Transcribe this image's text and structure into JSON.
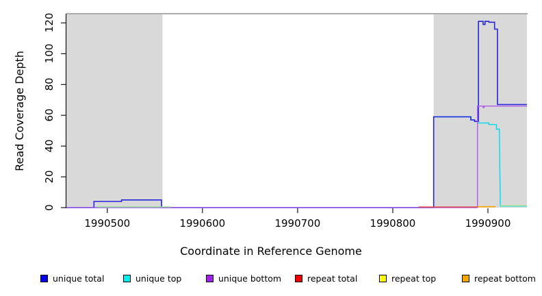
{
  "chart_data": {
    "type": "line",
    "title": "",
    "xlabel": "Coordinate in Reference Genome",
    "ylabel": "Read Coverage Depth",
    "xlim": [
      1990457,
      1990941
    ],
    "ylim": [
      0,
      126
    ],
    "x_ticks": [
      1990500,
      1990600,
      1990700,
      1990800,
      1990900
    ],
    "y_ticks": [
      0,
      20,
      40,
      60,
      80,
      100,
      120
    ],
    "grid": false,
    "legend_position": "bottom",
    "background_color": "#FFFFFF",
    "shaded_regions": [
      {
        "from": 1990457,
        "to": 1990558,
        "color": "#D9D9D9"
      },
      {
        "from": 1990843,
        "to": 1990941,
        "color": "#D9D9D9"
      }
    ],
    "max_line": {
      "value": 126,
      "color": "#909090"
    },
    "series": [
      {
        "name": "unique top",
        "color": "#00EEEE",
        "render_color": "#00DCEE",
        "width": 1.4,
        "segments": [
          [
            [
              1990457,
              0
            ],
            [
              1990843,
              0
            ],
            [
              1990843,
              59
            ],
            [
              1990882,
              59
            ],
            [
              1990882,
              57
            ],
            [
              1990886,
              57
            ],
            [
              1990886,
              56
            ],
            [
              1990889,
              56
            ],
            [
              1990889,
              55
            ],
            [
              1990901,
              55
            ],
            [
              1990901,
              54
            ],
            [
              1990909,
              54
            ],
            [
              1990909,
              51
            ],
            [
              1990912,
              51
            ],
            [
              1990913,
              1
            ],
            [
              1990941,
              1
            ]
          ]
        ]
      },
      {
        "name": "unique total",
        "color": "#0000EE",
        "render_color": "#2424DE",
        "width": 1.6,
        "segments": [
          [
            [
              1990457,
              0
            ],
            [
              1990486,
              0
            ],
            [
              1990486,
              4
            ],
            [
              1990515,
              4
            ],
            [
              1990515,
              5
            ],
            [
              1990557,
              5
            ],
            [
              1990557,
              0
            ],
            [
              1990843,
              0
            ],
            [
              1990843,
              59
            ],
            [
              1990882,
              59
            ],
            [
              1990882,
              57
            ],
            [
              1990886,
              57
            ],
            [
              1990886,
              56
            ],
            [
              1990890,
              56
            ],
            [
              1990890,
              121
            ],
            [
              1990895,
              121
            ],
            [
              1990895,
              119
            ],
            [
              1990897,
              119
            ],
            [
              1990897,
              121
            ],
            [
              1990901,
              121
            ],
            [
              1990901,
              120.5
            ],
            [
              1990907,
              120.5
            ],
            [
              1990907,
              116
            ],
            [
              1990910,
              116
            ],
            [
              1990910,
              67
            ],
            [
              1990941,
              67
            ]
          ]
        ]
      },
      {
        "name": "unique bottom",
        "color": "#A020F0",
        "render_color": "#AE5BE6",
        "width": 1.4,
        "segments": [
          [
            [
              1990457,
              0
            ],
            [
              1990889,
              0
            ],
            [
              1990889,
              66
            ],
            [
              1990895,
              66
            ],
            [
              1990895,
              65
            ],
            [
              1990896,
              65
            ],
            [
              1990896,
              66
            ],
            [
              1990941,
              66
            ]
          ]
        ]
      },
      {
        "name": "repeat total",
        "color": "#EE0000",
        "render_color": "#E04848",
        "width": 1.5,
        "segments": [
          [
            [
              1990827,
              0.4
            ],
            [
              1990889,
              0.4
            ]
          ]
        ]
      },
      {
        "name": "repeat top",
        "color": "#FFFF00",
        "render_color": "#95E690",
        "width": 1.4,
        "segments": [
          [
            [
              1990489,
              0.5
            ],
            [
              1990567,
              0.5
            ]
          ],
          [
            [
              1990913,
              1.2
            ],
            [
              1990941,
              1.2
            ]
          ]
        ]
      },
      {
        "name": "repeat bottom",
        "color": "#FFA500",
        "render_color": "#FFA500",
        "width": 1.6,
        "segments": [
          [
            [
              1990889,
              0.6
            ],
            [
              1990908,
              0.6
            ]
          ]
        ]
      }
    ]
  }
}
